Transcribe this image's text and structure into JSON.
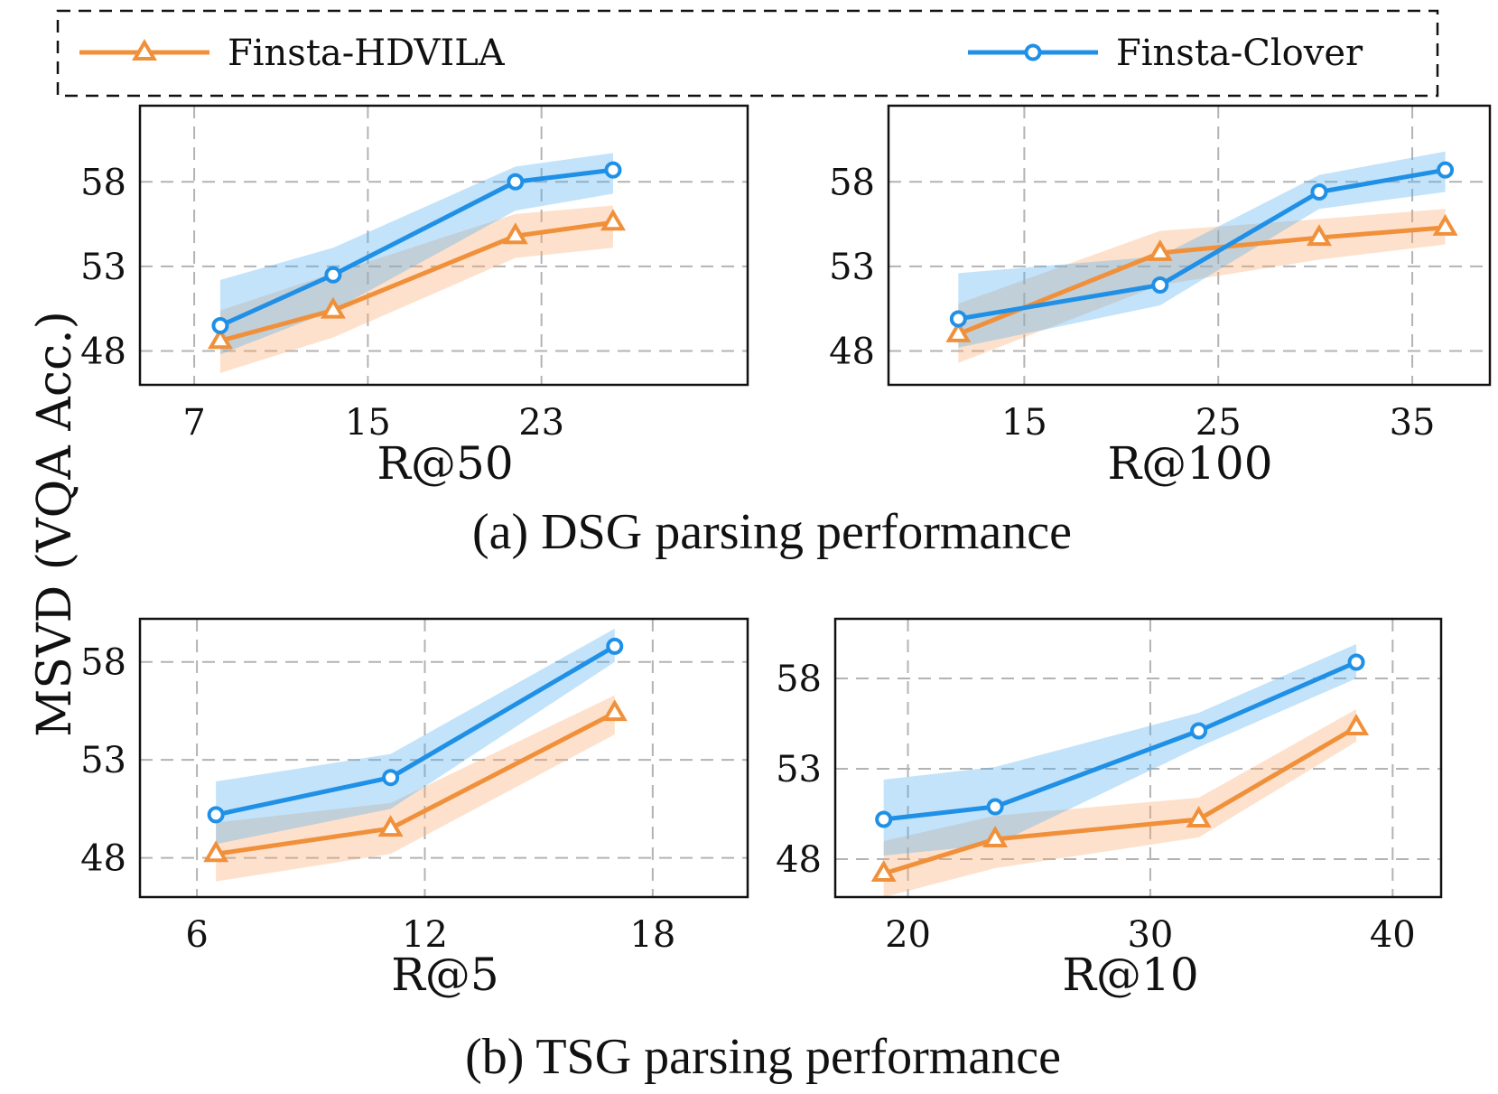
{
  "figure": {
    "ylabel": "MSVD (VQA Acc.)",
    "caption_a": "(a) DSG parsing performance",
    "caption_b": "(b) TSG parsing performance"
  },
  "legend": {
    "placement": "top",
    "entries": [
      {
        "name": "Finsta-HDVILA",
        "color": "#f0903a",
        "marker": "triangle"
      },
      {
        "name": "Finsta-Clover",
        "color": "#1f90e6",
        "marker": "circle"
      }
    ]
  },
  "chart_data": [
    {
      "id": "dsg_r50",
      "type": "line",
      "xlabel": "R@50",
      "xlim": [
        4.5,
        32.5
      ],
      "ylim": [
        46,
        62.5
      ],
      "xticks": [
        7,
        15,
        23
      ],
      "yticks": [
        48,
        53,
        58
      ],
      "grid": true,
      "series": [
        {
          "name": "Finsta-HDVILA",
          "color": "#f0903a",
          "marker": "triangle",
          "x": [
            8.2,
            13.4,
            21.8,
            26.3
          ],
          "y": [
            48.6,
            50.4,
            54.8,
            55.6
          ],
          "lower": [
            46.7,
            48.8,
            53.5,
            54.1
          ],
          "upper": [
            50.4,
            52.6,
            56.1,
            56.6
          ]
        },
        {
          "name": "Finsta-Clover",
          "color": "#1f90e6",
          "marker": "circle",
          "x": [
            8.2,
            13.4,
            21.8,
            26.3
          ],
          "y": [
            49.5,
            52.5,
            58.0,
            58.7
          ],
          "lower": [
            47.8,
            50.4,
            56.3,
            57.3
          ],
          "upper": [
            52.2,
            54.1,
            58.9,
            59.7
          ]
        }
      ]
    },
    {
      "id": "dsg_r100",
      "type": "line",
      "xlabel": "R@100",
      "xlim": [
        8,
        39
      ],
      "ylim": [
        46,
        62.5
      ],
      "xticks": [
        15,
        25,
        35
      ],
      "yticks": [
        48,
        53,
        58
      ],
      "grid": true,
      "series": [
        {
          "name": "Finsta-HDVILA",
          "color": "#f0903a",
          "marker": "triangle",
          "x": [
            11.6,
            22.0,
            30.2,
            36.7
          ],
          "y": [
            49.0,
            53.8,
            54.7,
            55.3
          ],
          "lower": [
            47.3,
            51.9,
            53.4,
            54.3
          ],
          "upper": [
            50.8,
            55.1,
            55.8,
            56.4
          ]
        },
        {
          "name": "Finsta-Clover",
          "color": "#1f90e6",
          "marker": "circle",
          "x": [
            11.6,
            22.0,
            30.2,
            36.7
          ],
          "y": [
            49.9,
            51.9,
            57.4,
            58.7
          ],
          "lower": [
            48.2,
            50.7,
            56.4,
            57.4
          ],
          "upper": [
            52.6,
            53.6,
            58.4,
            59.8
          ]
        }
      ]
    },
    {
      "id": "tsg_r5",
      "type": "line",
      "xlabel": "R@5",
      "xlim": [
        4.5,
        20.5
      ],
      "ylim": [
        46,
        60.2
      ],
      "xticks": [
        6,
        12,
        18
      ],
      "yticks": [
        48,
        53,
        58
      ],
      "grid": true,
      "series": [
        {
          "name": "Finsta-HDVILA",
          "color": "#f0903a",
          "marker": "triangle",
          "x": [
            6.5,
            11.1,
            17.0
          ],
          "y": [
            48.2,
            49.5,
            55.4
          ],
          "lower": [
            46.8,
            48.2,
            54.3
          ],
          "upper": [
            49.8,
            50.8,
            56.3
          ]
        },
        {
          "name": "Finsta-Clover",
          "color": "#1f90e6",
          "marker": "circle",
          "x": [
            6.5,
            11.1,
            17.0
          ],
          "y": [
            50.2,
            52.1,
            58.8
          ],
          "lower": [
            48.7,
            50.5,
            58.0
          ],
          "upper": [
            51.9,
            53.3,
            59.7
          ]
        }
      ]
    },
    {
      "id": "tsg_r10",
      "type": "line",
      "xlabel": "R@10",
      "xlim": [
        17,
        42
      ],
      "ylim": [
        45.9,
        61.3
      ],
      "xticks": [
        20,
        30,
        40
      ],
      "yticks": [
        48,
        53,
        58
      ],
      "grid": true,
      "series": [
        {
          "name": "Finsta-HDVILA",
          "color": "#f0903a",
          "marker": "triangle",
          "x": [
            19.0,
            23.6,
            32.0,
            38.5
          ],
          "y": [
            47.2,
            49.1,
            50.2,
            55.3
          ],
          "lower": [
            45.9,
            47.5,
            49.2,
            54.5
          ],
          "upper": [
            49.0,
            50.4,
            51.4,
            56.3
          ]
        },
        {
          "name": "Finsta-Clover",
          "color": "#1f90e6",
          "marker": "circle",
          "x": [
            19.0,
            23.6,
            32.0,
            38.5
          ],
          "y": [
            50.2,
            50.9,
            55.1,
            58.9
          ],
          "lower": [
            48.2,
            48.8,
            54.2,
            58.0
          ],
          "upper": [
            52.4,
            53.1,
            56.1,
            59.9
          ]
        }
      ]
    }
  ]
}
